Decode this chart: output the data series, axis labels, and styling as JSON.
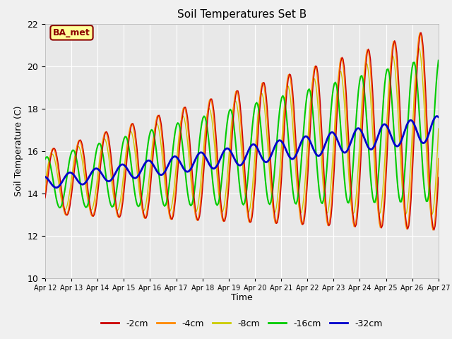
{
  "title": "Soil Temperatures Set B",
  "xlabel": "Time",
  "ylabel": "Soil Temperature (C)",
  "ylim": [
    10,
    22
  ],
  "yticks": [
    10,
    12,
    14,
    16,
    18,
    20,
    22
  ],
  "x_labels": [
    "Apr 12",
    "Apr 13",
    "Apr 14",
    "Apr 15",
    "Apr 16",
    "Apr 17",
    "Apr 18",
    "Apr 19",
    "Apr 20",
    "Apr 21",
    "Apr 22",
    "Apr 23",
    "Apr 24",
    "Apr 25",
    "Apr 26",
    "Apr 27"
  ],
  "colors": {
    "-2cm": "#cc0000",
    "-4cm": "#ff8800",
    "-8cm": "#cccc00",
    "-16cm": "#00cc00",
    "-32cm": "#0000cc"
  },
  "annotation_text": "BA_met",
  "annotation_color": "#8b0000",
  "annotation_bg": "#ffff99",
  "fig_facecolor": "#f0f0f0",
  "plot_bg": "#e8e8e8",
  "grid_color": "white"
}
